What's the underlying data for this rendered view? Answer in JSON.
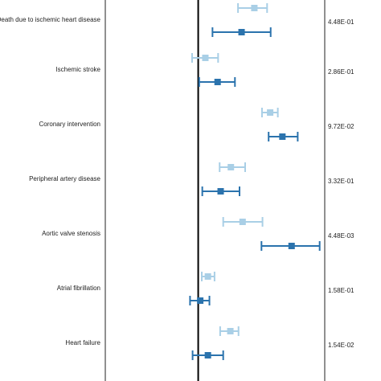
{
  "colors": {
    "series_light": "#a9cfe6",
    "series_dark": "#2b73ad",
    "reference_line": "#000000",
    "panel_border": "#222222"
  },
  "chart_data": {
    "type": "forest",
    "reference_value": 0,
    "xlim": [
      -0.16,
      0.27
    ],
    "series": [
      {
        "color": "light"
      },
      {
        "color": "dark"
      }
    ],
    "rows": [
      {
        "outcome": "Death due to ischemic heart disease",
        "p_value": "4.48E-01",
        "estimates": [
          {
            "point": 0.11,
            "lower": 0.078,
            "upper": 0.135
          },
          {
            "point": 0.085,
            "lower": 0.028,
            "upper": 0.142
          }
        ]
      },
      {
        "outcome": "Ischemic stroke",
        "p_value": "2.86E-01",
        "estimates": [
          {
            "point": 0.014,
            "lower": -0.012,
            "upper": 0.039
          },
          {
            "point": 0.038,
            "lower": 0.002,
            "upper": 0.072
          }
        ]
      },
      {
        "outcome": "Coronary intervention",
        "p_value": "9.72E-02",
        "estimates": [
          {
            "point": 0.141,
            "lower": 0.125,
            "upper": 0.156
          },
          {
            "point": 0.165,
            "lower": 0.138,
            "upper": 0.195
          }
        ]
      },
      {
        "outcome": "Peripheral artery disease",
        "p_value": "3.32E-01",
        "estimates": [
          {
            "point": 0.064,
            "lower": 0.042,
            "upper": 0.092
          },
          {
            "point": 0.044,
            "lower": 0.008,
            "upper": 0.081
          }
        ]
      },
      {
        "outcome": "Aortic valve stenosis",
        "p_value": "4.48E-03",
        "estimates": [
          {
            "point": 0.087,
            "lower": 0.049,
            "upper": 0.126
          },
          {
            "point": 0.183,
            "lower": 0.124,
            "upper": 0.238
          }
        ]
      },
      {
        "outcome": "Atrial fibrillation",
        "p_value": "1.58E-01",
        "estimates": [
          {
            "point": 0.019,
            "lower": 0.007,
            "upper": 0.032
          },
          {
            "point": 0.004,
            "lower": -0.016,
            "upper": 0.022
          }
        ]
      },
      {
        "outcome": "Heart failure",
        "p_value": "1.54E-02",
        "estimates": [
          {
            "point": 0.063,
            "lower": 0.043,
            "upper": 0.079
          },
          {
            "point": 0.019,
            "lower": -0.011,
            "upper": 0.049
          }
        ]
      }
    ]
  }
}
